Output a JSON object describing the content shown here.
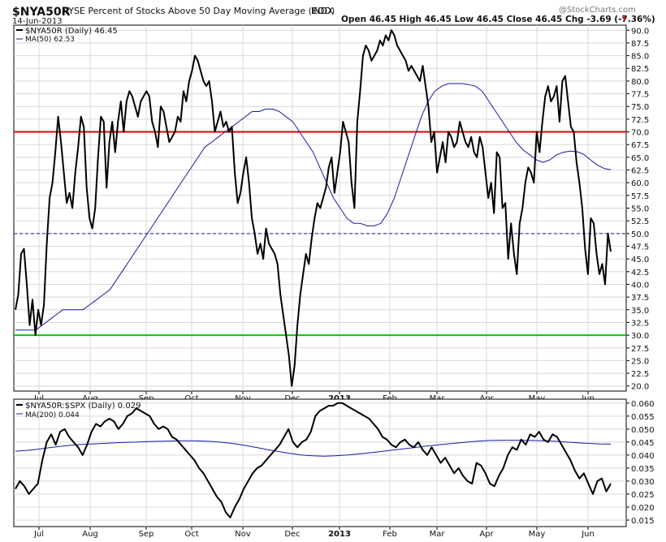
{
  "header": {
    "symbol": "$NYA50R",
    "description": "NYSE Percent of Stocks Above 50 Day Moving Average (EOD)",
    "exchange": "INDX",
    "date": "14-Jun-2013",
    "ohlc_label": "Open 46.45  High 46.45  Low 46.45  Close 46.45  Chg -3.69 (-7.36%)",
    "watermark": "@StockCharts.com"
  },
  "colors": {
    "price": "#000000",
    "ma": "#1a1aa6",
    "upper_line": "#e00000",
    "lower_line": "#00cc00",
    "mid_line": "#1a1aa6",
    "down_arrow": "#cc0000",
    "grid": "#d8d8d8"
  },
  "chart_data": [
    {
      "type": "line",
      "legend": [
        "$NYA50R (Daily) 46.45",
        "MA(50) 62.53"
      ],
      "months": [
        "Jul",
        "Aug",
        "Sep",
        "Oct",
        "Nov",
        "Dec",
        "2013",
        "Feb",
        "Mar",
        "Apr",
        "May",
        "Jun"
      ],
      "ylim": [
        19,
        91
      ],
      "yticks": [
        "90.0",
        "87.5",
        "85.0",
        "82.5",
        "80.0",
        "77.5",
        "75.0",
        "72.5",
        "70.0",
        "67.5",
        "65.0",
        "62.5",
        "60.0",
        "57.5",
        "55.0",
        "52.5",
        "50.0",
        "47.5",
        "45.0",
        "42.5",
        "40.0",
        "37.5",
        "35.0",
        "32.5",
        "30.0",
        "27.5",
        "25.0",
        "22.5",
        "20.0"
      ],
      "reference_lines": [
        70,
        50,
        30
      ],
      "series": [
        {
          "values": [
            35,
            38,
            46,
            47,
            40,
            32,
            37,
            30,
            35,
            32,
            36,
            48,
            57,
            60,
            66,
            73,
            68,
            62,
            56,
            58,
            55,
            62,
            67,
            73,
            71,
            59,
            53,
            51,
            55,
            65,
            73,
            72,
            59,
            68,
            72,
            66,
            72,
            76,
            70,
            76,
            78,
            77,
            75,
            73,
            76,
            77,
            78,
            77,
            72,
            70,
            67,
            75,
            74,
            71,
            68,
            69,
            70,
            73,
            72,
            78,
            76,
            80,
            82,
            85,
            84,
            82,
            80,
            79,
            80,
            76,
            70,
            72,
            74,
            71,
            72,
            70,
            71,
            62,
            56,
            58,
            62,
            65,
            60,
            53,
            50,
            46,
            48,
            45,
            51,
            48,
            47,
            46,
            44,
            38,
            34,
            30,
            26,
            20,
            24,
            32,
            38,
            42,
            46,
            44,
            49,
            53,
            56,
            55,
            57,
            59,
            63,
            65,
            58,
            62,
            66,
            72,
            70,
            68,
            60,
            55,
            72,
            78,
            85,
            87,
            86,
            84,
            85,
            86,
            88,
            87,
            89,
            88,
            90,
            89,
            87,
            86,
            85,
            84,
            82,
            83,
            82,
            81,
            80,
            83,
            79,
            75,
            68,
            70,
            62,
            65,
            68,
            64,
            70,
            69,
            67,
            68,
            72,
            70,
            68,
            67,
            69,
            66,
            65,
            69,
            67,
            62,
            57,
            60,
            54,
            66,
            65,
            55,
            56,
            45,
            52,
            46,
            42,
            52,
            55,
            60,
            63,
            62,
            60,
            70,
            66,
            72,
            77,
            79,
            76,
            77,
            79,
            72,
            80,
            81,
            76,
            71,
            70,
            64,
            60,
            55,
            47,
            42,
            53,
            52,
            46,
            42,
            44,
            40,
            50,
            46.45
          ]
        },
        {
          "values": [
            31,
            31,
            31,
            31,
            32,
            33,
            34,
            35,
            35,
            35,
            35,
            36,
            37,
            38,
            39,
            41,
            43,
            45,
            47,
            49,
            51,
            53,
            55,
            57,
            59,
            61,
            63,
            65,
            67,
            68,
            69,
            70,
            71,
            72,
            73,
            74,
            74,
            74.5,
            74.5,
            74,
            73,
            72,
            70,
            68,
            66,
            63,
            60,
            57,
            55,
            53,
            52,
            52,
            51.5,
            51.5,
            52,
            54,
            57,
            61,
            65,
            69,
            73,
            76,
            78,
            79,
            79.5,
            79.5,
            79.5,
            79.3,
            79,
            78,
            76,
            74,
            72,
            70,
            68,
            66.5,
            65.5,
            64.5,
            64,
            64.5,
            65.5,
            66,
            66.2,
            66.1,
            65.6,
            64.5,
            63.5,
            62.8,
            62.53
          ]
        }
      ]
    },
    {
      "type": "line",
      "legend": [
        "$NYA50R:$SPX (Daily) 0.029",
        "MA(200) 0.044"
      ],
      "months": [
        "Jul",
        "Aug",
        "Sep",
        "Oct",
        "Nov",
        "Dec",
        "2013",
        "Feb",
        "Mar",
        "Apr",
        "May",
        "Jun"
      ],
      "ylim": [
        0.0125,
        0.0615
      ],
      "yticks": [
        "0.060",
        "0.055",
        "0.050",
        "0.045",
        "0.040",
        "0.035",
        "0.030",
        "0.025",
        "0.020",
        "0.015"
      ],
      "series": [
        {
          "values": [
            0.027,
            0.03,
            0.028,
            0.025,
            0.027,
            0.029,
            0.038,
            0.045,
            0.048,
            0.044,
            0.049,
            0.05,
            0.047,
            0.045,
            0.043,
            0.04,
            0.044,
            0.049,
            0.052,
            0.051,
            0.053,
            0.054,
            0.053,
            0.05,
            0.052,
            0.055,
            0.056,
            0.058,
            0.057,
            0.056,
            0.055,
            0.052,
            0.05,
            0.051,
            0.05,
            0.047,
            0.046,
            0.044,
            0.042,
            0.04,
            0.038,
            0.035,
            0.033,
            0.03,
            0.027,
            0.024,
            0.022,
            0.018,
            0.016,
            0.02,
            0.023,
            0.027,
            0.03,
            0.033,
            0.035,
            0.036,
            0.038,
            0.04,
            0.042,
            0.044,
            0.047,
            0.05,
            0.045,
            0.043,
            0.045,
            0.046,
            0.049,
            0.055,
            0.057,
            0.058,
            0.059,
            0.059,
            0.06,
            0.06,
            0.059,
            0.058,
            0.057,
            0.056,
            0.055,
            0.054,
            0.052,
            0.05,
            0.047,
            0.046,
            0.044,
            0.043,
            0.045,
            0.046,
            0.044,
            0.043,
            0.045,
            0.042,
            0.04,
            0.043,
            0.04,
            0.037,
            0.039,
            0.036,
            0.033,
            0.035,
            0.032,
            0.03,
            0.029,
            0.037,
            0.036,
            0.033,
            0.029,
            0.028,
            0.032,
            0.035,
            0.04,
            0.043,
            0.042,
            0.046,
            0.044,
            0.048,
            0.047,
            0.049,
            0.046,
            0.045,
            0.048,
            0.047,
            0.044,
            0.041,
            0.038,
            0.034,
            0.031,
            0.033,
            0.029,
            0.025,
            0.03,
            0.031,
            0.026,
            0.029
          ]
        },
        {
          "values": [
            0.0415,
            0.0418,
            0.0422,
            0.0428,
            0.0433,
            0.0438,
            0.0441,
            0.0443,
            0.0445,
            0.0447,
            0.0449,
            0.045,
            0.0452,
            0.0453,
            0.0454,
            0.0455,
            0.0455,
            0.0454,
            0.0452,
            0.0448,
            0.0443,
            0.0436,
            0.0428,
            0.042,
            0.0413,
            0.0406,
            0.04,
            0.0397,
            0.0396,
            0.0397,
            0.04,
            0.0404,
            0.0408,
            0.0413,
            0.0418,
            0.0423,
            0.0428,
            0.0433,
            0.0438,
            0.0442,
            0.0446,
            0.045,
            0.0454,
            0.0456,
            0.0457,
            0.0457,
            0.0457,
            0.0456,
            0.0455,
            0.0453,
            0.045,
            0.0447,
            0.0445,
            0.0443,
            0.0442
          ]
        }
      ]
    }
  ]
}
